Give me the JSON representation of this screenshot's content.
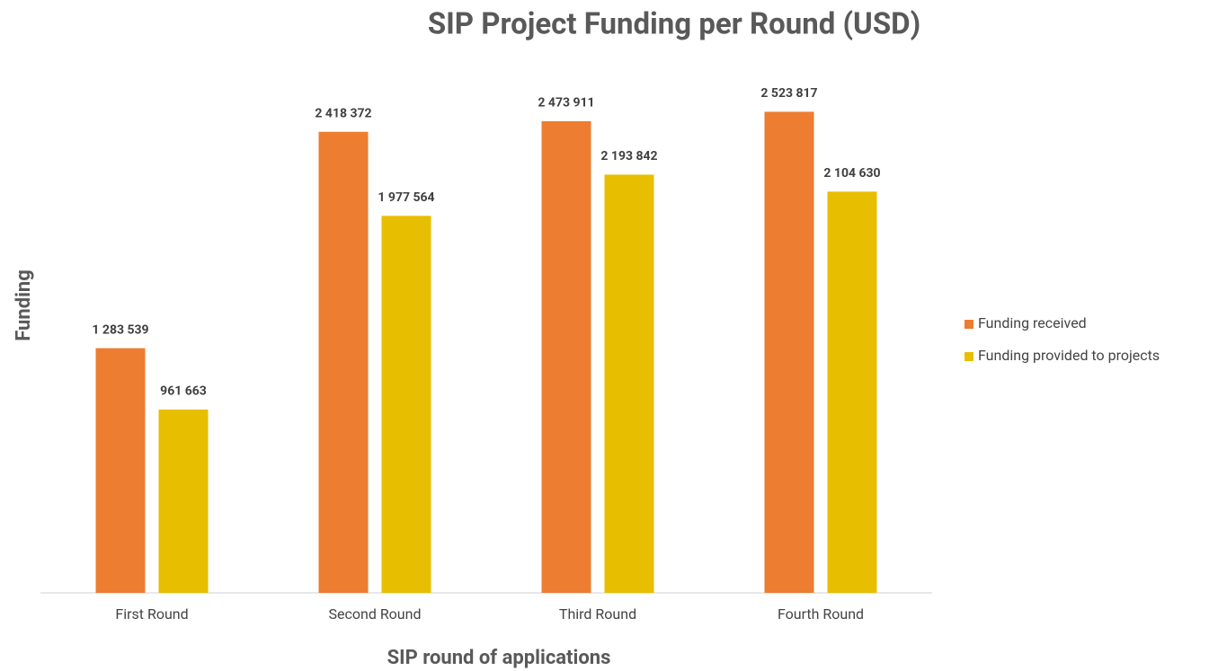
{
  "chart_data": {
    "type": "bar",
    "title": "SIP Project Funding per Round (USD)",
    "x_label": "SIP round of applications",
    "y_label": "Funding",
    "categories": [
      "First Round",
      "Second Round",
      "Third Round",
      "Fourth Round"
    ],
    "series": [
      {
        "name": "Funding received",
        "color": "#ed7d31",
        "values": [
          1283539,
          2418372,
          2473911,
          2523817
        ],
        "value_labels": [
          "1 283 539",
          "2 418 372",
          "2 473 911",
          "2 523 817"
        ]
      },
      {
        "name": "Funding provided to projects",
        "color": "#e8be00",
        "values": [
          961663,
          1977564,
          2193842,
          2104630
        ],
        "value_labels": [
          "961 663",
          "1 977 564",
          "2 193 842",
          "2 104 630"
        ]
      }
    ],
    "ylim": [
      0,
      2700000
    ],
    "legend": "right"
  }
}
